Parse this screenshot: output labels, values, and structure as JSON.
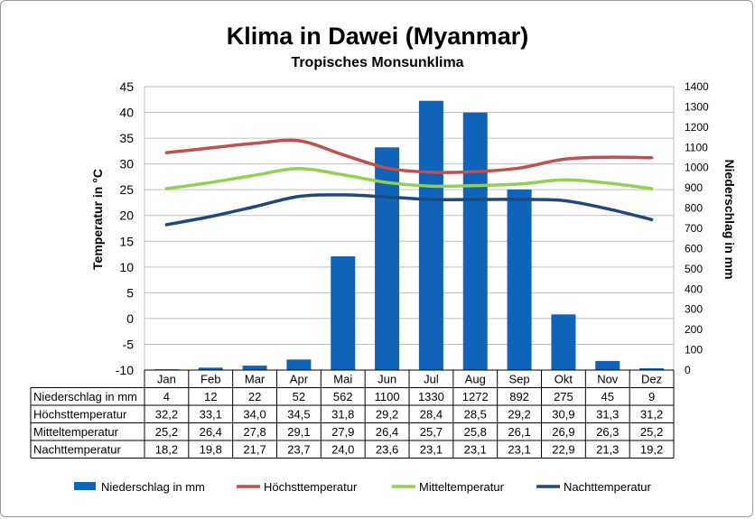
{
  "chart_data": {
    "type": "bar",
    "title": "Klima in Dawei (Myanmar)",
    "subtitle": "Tropisches Monsunklima",
    "categories": [
      "Jan",
      "Feb",
      "Mar",
      "Apr",
      "Mai",
      "Jun",
      "Jul",
      "Aug",
      "Sep",
      "Okt",
      "Nov",
      "Dez"
    ],
    "y_left": {
      "label": "Temperatur in °C",
      "range": [
        -10,
        45
      ],
      "ticks": [
        -10,
        -5,
        0,
        5,
        10,
        15,
        20,
        25,
        30,
        35,
        40,
        45
      ]
    },
    "y_right": {
      "label": "Niederschlag in mm",
      "range": [
        0,
        1400
      ],
      "ticks": [
        0,
        100,
        200,
        300,
        400,
        500,
        600,
        700,
        800,
        900,
        1000,
        1100,
        1200,
        1300,
        1400
      ]
    },
    "grid": true,
    "legend_position": "bottom",
    "series": [
      {
        "name": "Niederschlag in mm",
        "type": "bar",
        "axis": "right",
        "color": "#0f63b8",
        "values": [
          4,
          12,
          22,
          52,
          562,
          1100,
          1330,
          1272,
          892,
          275,
          45,
          9
        ],
        "labels": [
          "4",
          "12",
          "22",
          "52",
          "562",
          "1100",
          "1330",
          "1272",
          "892",
          "275",
          "45",
          "9"
        ]
      },
      {
        "name": "Höchsttemperatur",
        "type": "line",
        "axis": "left",
        "color": "#c0504d",
        "values": [
          32.2,
          33.1,
          34.0,
          34.5,
          31.8,
          29.2,
          28.4,
          28.5,
          29.2,
          30.9,
          31.3,
          31.2
        ],
        "labels": [
          "32,2",
          "33,1",
          "34,0",
          "34,5",
          "31,8",
          "29,2",
          "28,4",
          "28,5",
          "29,2",
          "30,9",
          "31,3",
          "31,2"
        ]
      },
      {
        "name": "Mitteltemperatur",
        "type": "line",
        "axis": "left",
        "color": "#92d050",
        "values": [
          25.2,
          26.4,
          27.8,
          29.1,
          27.9,
          26.4,
          25.7,
          25.8,
          26.1,
          26.9,
          26.3,
          25.2
        ],
        "labels": [
          "25,2",
          "26,4",
          "27,8",
          "29,1",
          "27,9",
          "26,4",
          "25,7",
          "25,8",
          "26,1",
          "26,9",
          "26,3",
          "25,2"
        ]
      },
      {
        "name": "Nachttemperatur",
        "type": "line",
        "axis": "left",
        "color": "#1f497d",
        "values": [
          18.2,
          19.8,
          21.7,
          23.7,
          24.0,
          23.6,
          23.1,
          23.1,
          23.1,
          22.9,
          21.3,
          19.2
        ],
        "labels": [
          "18,2",
          "19,8",
          "21,7",
          "23,7",
          "24,0",
          "23,6",
          "23,1",
          "23,1",
          "23,1",
          "22,9",
          "21,3",
          "19,2"
        ]
      }
    ]
  }
}
